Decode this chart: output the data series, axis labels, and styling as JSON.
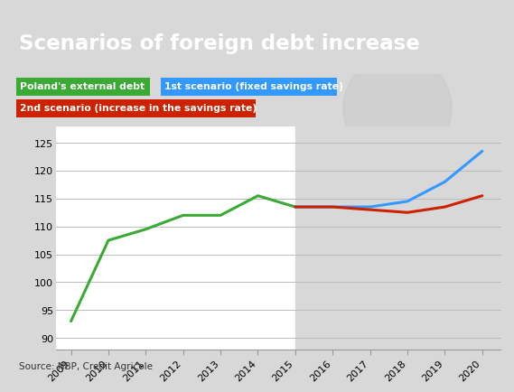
{
  "title": "Scenarios of foreign debt increase",
  "title_bg": "#1b2f6e",
  "title_color": "#ffffff",
  "source": "Source: NBP, Credit Agricole",
  "legend_bg": "#d8d8d8",
  "green_label": "Poland's external debt",
  "blue_label": "1st scenario (fixed savings rate)",
  "red_label": "2nd scenario (increase in the savings rate)",
  "green_x": [
    2009,
    2010,
    2011,
    2012,
    2013,
    2014,
    2015
  ],
  "green_y": [
    93,
    107.5,
    109.5,
    112,
    112,
    115.5,
    113.5
  ],
  "blue_x": [
    2015,
    2016,
    2017,
    2018,
    2019,
    2020
  ],
  "blue_y": [
    113.5,
    113.5,
    113.5,
    114.5,
    118,
    123.5
  ],
  "red_x": [
    2015,
    2016,
    2017,
    2018,
    2019,
    2020
  ],
  "red_y": [
    113.5,
    113.5,
    113,
    112.5,
    113.5,
    115.5
  ],
  "ylim": [
    88,
    128
  ],
  "yticks": [
    90,
    95,
    100,
    105,
    110,
    115,
    120,
    125
  ],
  "xlim": [
    2008.6,
    2020.5
  ],
  "xticks": [
    2009,
    2010,
    2011,
    2012,
    2013,
    2014,
    2015,
    2016,
    2017,
    2018,
    2019,
    2020
  ],
  "forecast_start": 2015,
  "chart_bg": "#ffffff",
  "forecast_bg": "#d8d8d8",
  "grid_color": "#bbbbbb",
  "green_color": "#3aaa35",
  "blue_color": "#3399ff",
  "red_color": "#cc2200"
}
